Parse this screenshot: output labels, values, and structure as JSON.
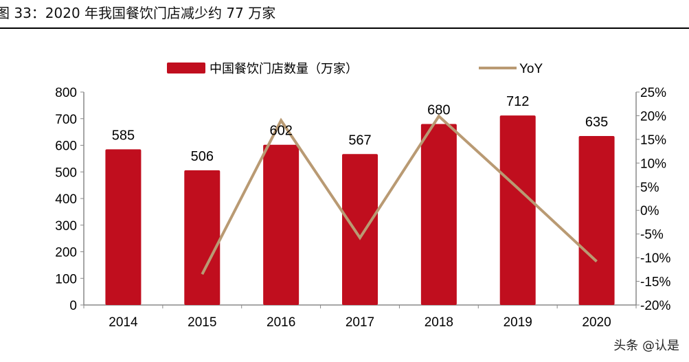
{
  "title": "图 33：2020 年我国餐饮门店减少约 77 万家",
  "watermark": "头条 @认是",
  "chart_data": {
    "type": "bar+line",
    "categories": [
      "2014",
      "2015",
      "2016",
      "2017",
      "2018",
      "2019",
      "2020"
    ],
    "series": [
      {
        "name": "中国餐饮门店数量（万家）",
        "type": "bar",
        "axis": "left",
        "color": "#C00E1E",
        "values": [
          585,
          506,
          602,
          567,
          680,
          712,
          635
        ]
      },
      {
        "name": "YoY",
        "type": "line",
        "axis": "right",
        "color": "#B99A73",
        "values": [
          null,
          -13.5,
          19.0,
          -5.8,
          19.9,
          4.7,
          -10.8
        ]
      }
    ],
    "left_axis": {
      "ylim": [
        0,
        800
      ],
      "ticks": [
        "0",
        "100",
        "200",
        "300",
        "400",
        "500",
        "600",
        "700",
        "800"
      ]
    },
    "right_axis": {
      "ylim": [
        -20,
        25
      ],
      "ticks": [
        "-20%",
        "-15%",
        "-10%",
        "-5%",
        "0%",
        "5%",
        "10%",
        "15%",
        "20%",
        "25%"
      ]
    },
    "legend": "top",
    "grid": false
  }
}
